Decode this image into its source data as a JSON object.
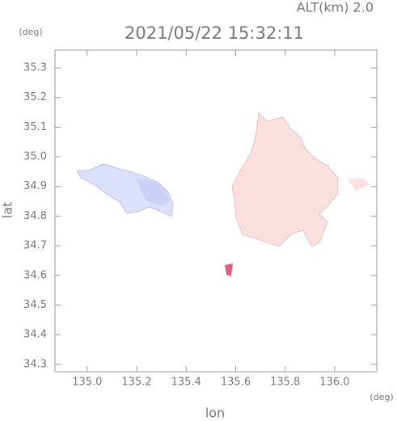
{
  "chart_data": {
    "type": "map",
    "title": "2021/05/22 15:32:11",
    "subtitle": "ALT(km) 2.0",
    "x_label": "lon",
    "y_label": "lat",
    "x_unit": "(deg)",
    "y_unit": "(deg)",
    "xlim": [
      134.87,
      136.17
    ],
    "ylim": [
      34.275,
      35.36
    ],
    "xticks": [
      {
        "value": 135.0,
        "label": "135.0"
      },
      135.2,
      135.4,
      135.6,
      135.8,
      {
        "value": 136.0,
        "label": "136.0"
      }
    ],
    "yticks": [
      34.3,
      34.4,
      34.5,
      34.6,
      34.7,
      34.8,
      34.9,
      {
        "value": 35.0,
        "label": "35.0"
      },
      35.1,
      35.2,
      35.3
    ]
  }
}
